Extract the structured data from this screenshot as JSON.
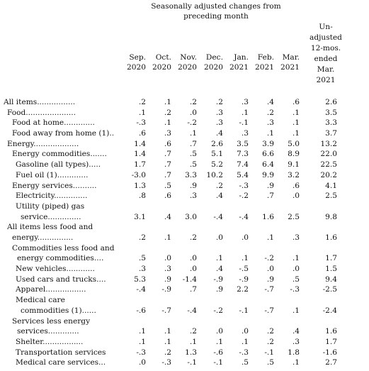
{
  "header": {
    "title_line1": "Seasonally adjusted changes from",
    "title_line2": "preceding month",
    "columns": [
      {
        "month": "Sep.",
        "year": "2020"
      },
      {
        "month": "Oct.",
        "year": "2020"
      },
      {
        "month": "Nov.",
        "year": "2020"
      },
      {
        "month": "Dec.",
        "year": "2020"
      },
      {
        "month": "Jan.",
        "year": "2021"
      },
      {
        "month": "Feb.",
        "year": "2021"
      },
      {
        "month": "Mar.",
        "year": "2021"
      }
    ],
    "unadjusted_lines": [
      "Un-",
      "adjusted",
      "12-mos.",
      "ended",
      "Mar.",
      "2021"
    ]
  },
  "rows": [
    {
      "lines": [
        "All items................"
      ],
      "indent": 0,
      "values": [
        ".2",
        ".1",
        ".2",
        ".2",
        ".3",
        ".4",
        ".6",
        "2.6"
      ]
    },
    {
      "lines": [
        "Food....................."
      ],
      "indent": 1,
      "values": [
        ".1",
        ".2",
        ".0",
        ".3",
        ".1",
        ".2",
        ".1",
        "3.5"
      ]
    },
    {
      "lines": [
        "Food at home............."
      ],
      "indent": 2,
      "values": [
        "-.3",
        ".1",
        "-.2",
        ".3",
        "-.1",
        ".3",
        ".1",
        "3.3"
      ]
    },
    {
      "lines": [
        "Food away from home (1).."
      ],
      "indent": 2,
      "values": [
        ".6",
        ".3",
        ".1",
        ".4",
        ".3",
        ".1",
        ".1",
        "3.7"
      ]
    },
    {
      "lines": [
        "Energy..................."
      ],
      "indent": 1,
      "values": [
        "1.4",
        ".6",
        ".7",
        "2.6",
        "3.5",
        "3.9",
        "5.0",
        "13.2"
      ]
    },
    {
      "lines": [
        "Energy commodities......."
      ],
      "indent": 2,
      "values": [
        "1.4",
        ".7",
        ".5",
        "5.1",
        "7.3",
        "6.6",
        "8.9",
        "22.0"
      ]
    },
    {
      "lines": [
        "Gasoline (all types)....."
      ],
      "indent": 3,
      "values": [
        "1.7",
        ".7",
        ".5",
        "5.2",
        "7.4",
        "6.4",
        "9.1",
        "22.5"
      ]
    },
    {
      "lines": [
        "Fuel oil (1)............."
      ],
      "indent": 3,
      "values": [
        "-3.0",
        ".7",
        "3.3",
        "10.2",
        "5.4",
        "9.9",
        "3.2",
        "20.2"
      ]
    },
    {
      "lines": [
        "Energy services.........."
      ],
      "indent": 2,
      "values": [
        "1.3",
        ".5",
        ".9",
        ".2",
        "-.3",
        ".9",
        ".6",
        "4.1"
      ]
    },
    {
      "lines": [
        "Electricity.............."
      ],
      "indent": 3,
      "values": [
        ".8",
        ".6",
        ".3",
        ".4",
        "-.2",
        ".7",
        ".0",
        "2.5"
      ]
    },
    {
      "lines": [
        "Utility (piped) gas",
        "service.............."
      ],
      "indent": 3,
      "values": [
        "3.1",
        ".4",
        "3.0",
        "-.4",
        "-.4",
        "1.6",
        "2.5",
        "9.8"
      ]
    },
    {
      "lines": [
        "All items less food and",
        "energy..............."
      ],
      "indent": 1,
      "values": [
        ".2",
        ".1",
        ".2",
        ".0",
        ".0",
        ".1",
        ".3",
        "1.6"
      ]
    },
    {
      "lines": [
        "Commodities less food and",
        "energy commodities...."
      ],
      "indent": 2,
      "values": [
        ".5",
        ".0",
        ".0",
        ".1",
        ".1",
        "-.2",
        ".1",
        "1.7"
      ]
    },
    {
      "lines": [
        "New vehicles............"
      ],
      "indent": 3,
      "values": [
        ".3",
        ".3",
        ".0",
        ".4",
        "-.5",
        ".0",
        ".0",
        "1.5"
      ]
    },
    {
      "lines": [
        "Used cars and trucks...."
      ],
      "indent": 3,
      "values": [
        "5.3",
        ".9",
        "-1.4",
        "-.9",
        "-.9",
        ".9",
        ".5",
        "9.4"
      ]
    },
    {
      "lines": [
        "Apparel................."
      ],
      "indent": 3,
      "values": [
        "-.4",
        "-.9",
        ".7",
        ".9",
        "2.2",
        "-.7",
        "-.3",
        "-2.5"
      ]
    },
    {
      "lines": [
        "Medical care",
        "commodities (1)......"
      ],
      "indent": 3,
      "values": [
        "-.6",
        "-.7",
        "-.4",
        "-.2",
        "-.1",
        "-.7",
        ".1",
        "-2.4"
      ]
    },
    {
      "lines": [
        "Services less energy",
        "services............."
      ],
      "indent": 2,
      "values": [
        ".1",
        ".1",
        ".2",
        ".0",
        ".0",
        ".2",
        ".4",
        "1.6"
      ]
    },
    {
      "lines": [
        "Shelter................."
      ],
      "indent": 3,
      "values": [
        ".1",
        ".1",
        ".1",
        ".1",
        ".1",
        ".2",
        ".3",
        "1.7"
      ]
    },
    {
      "lines": [
        "Transportation services"
      ],
      "indent": 3,
      "values": [
        "-.3",
        ".2",
        "1.3",
        "-.6",
        "-.3",
        "-.1",
        "1.8",
        "-1.6"
      ]
    },
    {
      "lines": [
        "Medical care services..."
      ],
      "indent": 3,
      "values": [
        ".0",
        "-.3",
        "-.1",
        "-.1",
        ".5",
        ".5",
        ".1",
        "2.7"
      ]
    }
  ]
}
